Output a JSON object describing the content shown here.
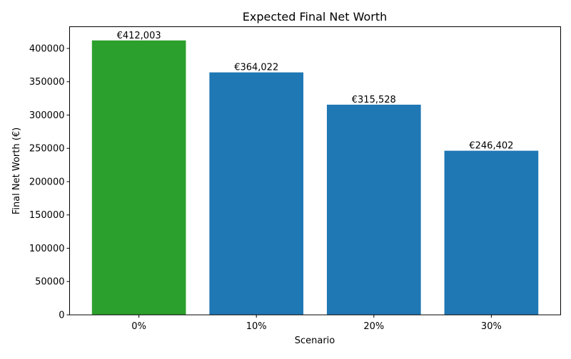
{
  "chart_data": {
    "type": "bar",
    "title": "Expected Final Net Worth",
    "xlabel": "Scenario",
    "ylabel": "Final Net Worth (€)",
    "categories": [
      "0%",
      "10%",
      "20%",
      "30%"
    ],
    "values": [
      412003,
      364022,
      315528,
      246402
    ],
    "data_labels": [
      "€412,003",
      "€364,022",
      "€315,528",
      "€246,402"
    ],
    "colors": [
      "#2ca02c",
      "#1f77b4",
      "#1f77b4",
      "#1f77b4"
    ],
    "ylim": [
      0,
      432603
    ],
    "xlim": [
      -0.59,
      3.59
    ],
    "yticks": [
      0,
      50000,
      100000,
      150000,
      200000,
      250000,
      300000,
      350000,
      400000
    ],
    "grid": false
  }
}
